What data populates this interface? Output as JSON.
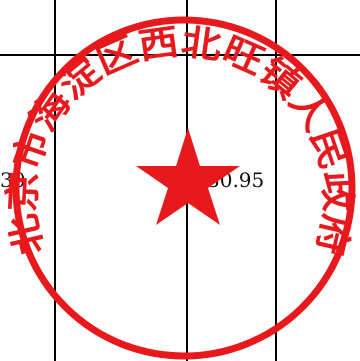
{
  "table": {
    "values": [
      "30",
      "30.95"
    ]
  },
  "seal": {
    "text": "北京市海淀区西北旺镇人民政府",
    "color": "#e8191c"
  }
}
